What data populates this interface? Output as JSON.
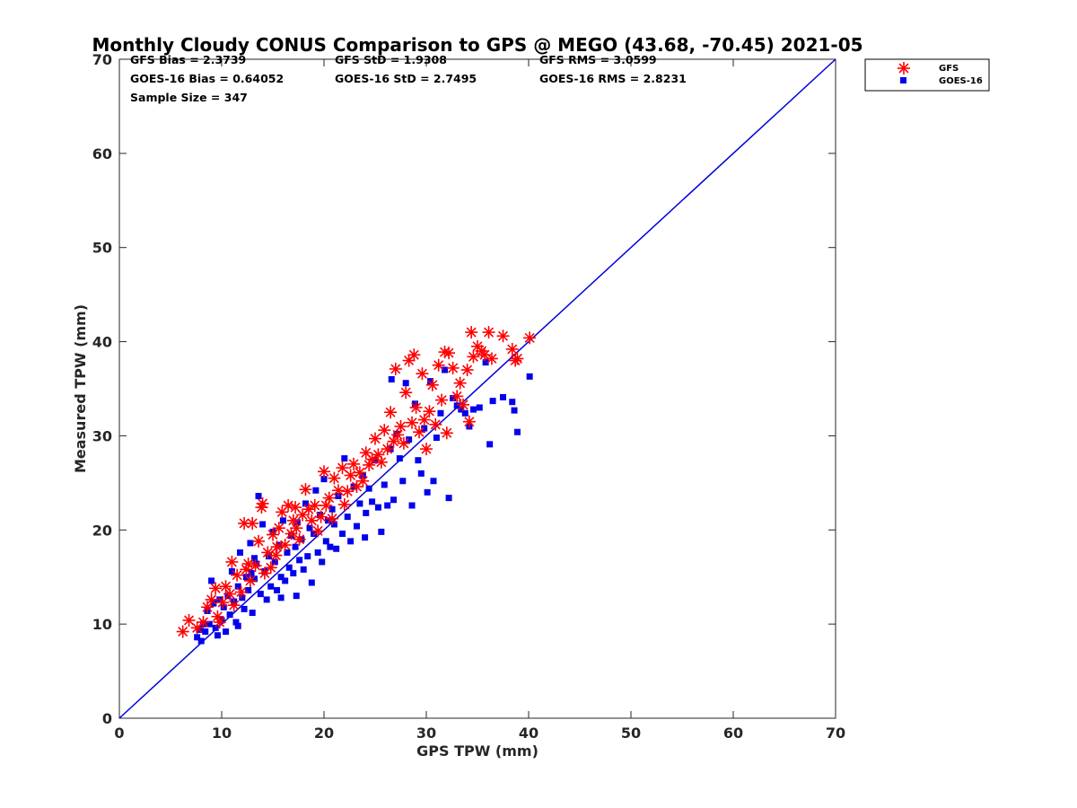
{
  "chart_data": {
    "type": "scatter",
    "title": "Monthly Cloudy CONUS Comparison to GPS @ MEGO (43.68, -70.45) 2021-05",
    "xlabel": "GPS TPW (mm)",
    "ylabel": "Measured TPW (mm)",
    "xlim": [
      0,
      70
    ],
    "ylim": [
      0,
      70
    ],
    "xticks": [
      "0",
      "10",
      "20",
      "30",
      "40",
      "50",
      "60",
      "70"
    ],
    "yticks": [
      "0",
      "10",
      "20",
      "30",
      "40",
      "50",
      "60",
      "70"
    ],
    "grid": false,
    "legend_position": "top-right, outside",
    "stats": {
      "gfs_bias": "GFS Bias = 2.3739",
      "goes_bias": "GOES-16 Bias = 0.64052",
      "sample_size": "Sample Size = 347",
      "gfs_std": "GFS StD = 1.9308",
      "goes_std": "GOES-16 StD = 2.7495",
      "gfs_rms": "GFS RMS = 3.0599",
      "goes_rms": "GOES-16 RMS = 2.8231"
    },
    "reference_line": {
      "x": [
        0,
        70
      ],
      "y": [
        0,
        70
      ],
      "color": "#0000dd"
    },
    "series": [
      {
        "name": "GFS",
        "marker": "asterisk",
        "color": "#ff0000",
        "points": [
          [
            6.2,
            9.2
          ],
          [
            6.8,
            10.4
          ],
          [
            7.6,
            9.6
          ],
          [
            8.2,
            10.2
          ],
          [
            8.6,
            11.8
          ],
          [
            9.0,
            12.6
          ],
          [
            9.4,
            13.8
          ],
          [
            9.6,
            10.8
          ],
          [
            10.1,
            12.3
          ],
          [
            10.4,
            14.0
          ],
          [
            10.8,
            13.2
          ],
          [
            11.0,
            16.6
          ],
          [
            11.2,
            12.0
          ],
          [
            11.5,
            15.2
          ],
          [
            11.9,
            13.4
          ],
          [
            12.2,
            20.7
          ],
          [
            12.4,
            15.8
          ],
          [
            12.8,
            14.6
          ],
          [
            13.0,
            20.7
          ],
          [
            13.3,
            16.2
          ],
          [
            13.6,
            18.8
          ],
          [
            13.9,
            22.4
          ],
          [
            14.0,
            22.8
          ],
          [
            14.2,
            15.4
          ],
          [
            14.5,
            17.6
          ],
          [
            14.8,
            16.0
          ],
          [
            15.0,
            19.5
          ],
          [
            15.3,
            17.3
          ],
          [
            15.6,
            20.2
          ],
          [
            15.9,
            21.9
          ],
          [
            16.2,
            18.4
          ],
          [
            16.5,
            22.6
          ],
          [
            16.8,
            19.6
          ],
          [
            17.0,
            21.0
          ],
          [
            17.3,
            20.2
          ],
          [
            17.6,
            19.0
          ],
          [
            17.9,
            21.6
          ],
          [
            18.2,
            24.3
          ],
          [
            18.5,
            22.2
          ],
          [
            18.8,
            21.0
          ],
          [
            19.1,
            22.6
          ],
          [
            19.4,
            19.9
          ],
          [
            19.7,
            21.4
          ],
          [
            20.0,
            26.2
          ],
          [
            20.2,
            22.6
          ],
          [
            20.5,
            23.4
          ],
          [
            20.8,
            21.2
          ],
          [
            21.0,
            25.5
          ],
          [
            21.4,
            24.2
          ],
          [
            21.8,
            26.6
          ],
          [
            22.0,
            22.7
          ],
          [
            22.3,
            24.1
          ],
          [
            22.6,
            25.8
          ],
          [
            22.9,
            27.0
          ],
          [
            23.2,
            24.6
          ],
          [
            23.5,
            26.1
          ],
          [
            23.8,
            25.2
          ],
          [
            24.1,
            28.2
          ],
          [
            24.4,
            26.9
          ],
          [
            24.7,
            27.5
          ],
          [
            25.0,
            29.7
          ],
          [
            25.3,
            28.0
          ],
          [
            25.6,
            27.2
          ],
          [
            25.9,
            30.6
          ],
          [
            26.2,
            28.6
          ],
          [
            26.5,
            32.5
          ],
          [
            26.8,
            29.4
          ],
          [
            27.0,
            37.1
          ],
          [
            27.2,
            30.1
          ],
          [
            27.5,
            31.0
          ],
          [
            27.8,
            29.2
          ],
          [
            28.0,
            34.6
          ],
          [
            28.3,
            38.0
          ],
          [
            28.6,
            31.4
          ],
          [
            28.8,
            38.6
          ],
          [
            29.0,
            33.0
          ],
          [
            29.3,
            30.4
          ],
          [
            29.6,
            36.6
          ],
          [
            29.8,
            31.7
          ],
          [
            30.0,
            28.6
          ],
          [
            30.3,
            32.6
          ],
          [
            30.6,
            35.4
          ],
          [
            30.9,
            31.2
          ],
          [
            31.2,
            37.5
          ],
          [
            31.5,
            33.8
          ],
          [
            31.8,
            38.9
          ],
          [
            32.0,
            30.3
          ],
          [
            32.2,
            38.8
          ],
          [
            32.6,
            37.2
          ],
          [
            33.0,
            34.2
          ],
          [
            33.3,
            35.6
          ],
          [
            33.6,
            33.3
          ],
          [
            34.0,
            37.0
          ],
          [
            34.2,
            31.5
          ],
          [
            34.4,
            41.0
          ],
          [
            34.6,
            38.4
          ],
          [
            35.0,
            39.5
          ],
          [
            35.4,
            39.0
          ],
          [
            35.7,
            38.6
          ],
          [
            36.1,
            41.0
          ],
          [
            36.4,
            38.2
          ],
          [
            37.5,
            40.6
          ],
          [
            38.4,
            39.2
          ],
          [
            38.7,
            38.0
          ],
          [
            38.9,
            38.2
          ],
          [
            40.1,
            40.4
          ],
          [
            12.6,
            16.4
          ],
          [
            15.4,
            18.2
          ],
          [
            17.2,
            22.4
          ],
          [
            9.8,
            10.2
          ]
        ]
      },
      {
        "name": "GOES-16",
        "marker": "square",
        "color": "#0000ee",
        "points": [
          [
            7.6,
            8.6
          ],
          [
            7.8,
            9.4
          ],
          [
            8.0,
            8.2
          ],
          [
            8.2,
            10.0
          ],
          [
            8.4,
            9.2
          ],
          [
            8.6,
            11.4
          ],
          [
            8.8,
            10.0
          ],
          [
            9.0,
            14.6
          ],
          [
            9.2,
            12.2
          ],
          [
            9.4,
            9.6
          ],
          [
            9.6,
            8.8
          ],
          [
            9.8,
            12.6
          ],
          [
            10.0,
            10.4
          ],
          [
            10.2,
            11.8
          ],
          [
            10.4,
            9.2
          ],
          [
            10.6,
            13.0
          ],
          [
            10.8,
            11.0
          ],
          [
            11.0,
            15.6
          ],
          [
            11.2,
            12.4
          ],
          [
            11.4,
            10.2
          ],
          [
            11.6,
            14.0
          ],
          [
            11.8,
            17.6
          ],
          [
            12.0,
            12.8
          ],
          [
            12.2,
            11.6
          ],
          [
            12.4,
            15.0
          ],
          [
            12.6,
            13.6
          ],
          [
            12.8,
            18.6
          ],
          [
            13.0,
            11.2
          ],
          [
            13.2,
            14.8
          ],
          [
            13.4,
            16.4
          ],
          [
            13.6,
            23.6
          ],
          [
            13.8,
            13.2
          ],
          [
            14.0,
            20.6
          ],
          [
            14.2,
            15.6
          ],
          [
            14.4,
            12.6
          ],
          [
            14.6,
            17.2
          ],
          [
            14.8,
            14.0
          ],
          [
            15.0,
            19.8
          ],
          [
            15.2,
            16.6
          ],
          [
            15.4,
            13.6
          ],
          [
            15.6,
            18.4
          ],
          [
            15.8,
            15.0
          ],
          [
            16.0,
            21.0
          ],
          [
            16.2,
            14.6
          ],
          [
            16.4,
            17.6
          ],
          [
            16.6,
            16.0
          ],
          [
            16.8,
            19.4
          ],
          [
            17.0,
            15.4
          ],
          [
            17.2,
            18.2
          ],
          [
            17.4,
            20.8
          ],
          [
            17.6,
            16.8
          ],
          [
            17.8,
            19.0
          ],
          [
            18.0,
            15.8
          ],
          [
            18.2,
            22.8
          ],
          [
            18.4,
            17.2
          ],
          [
            18.6,
            20.2
          ],
          [
            18.8,
            14.4
          ],
          [
            19.0,
            19.6
          ],
          [
            19.2,
            24.2
          ],
          [
            19.4,
            17.6
          ],
          [
            19.6,
            21.6
          ],
          [
            19.8,
            16.6
          ],
          [
            20.0,
            25.4
          ],
          [
            20.2,
            18.8
          ],
          [
            20.4,
            21.0
          ],
          [
            20.6,
            18.2
          ],
          [
            20.8,
            22.2
          ],
          [
            21.0,
            20.6
          ],
          [
            21.4,
            23.6
          ],
          [
            21.8,
            19.6
          ],
          [
            22.0,
            27.6
          ],
          [
            22.3,
            21.4
          ],
          [
            22.6,
            18.8
          ],
          [
            22.9,
            24.6
          ],
          [
            23.2,
            20.4
          ],
          [
            23.5,
            22.8
          ],
          [
            23.8,
            25.8
          ],
          [
            24.1,
            21.8
          ],
          [
            24.4,
            24.4
          ],
          [
            24.7,
            23.0
          ],
          [
            25.0,
            27.4
          ],
          [
            25.3,
            22.4
          ],
          [
            25.6,
            19.8
          ],
          [
            25.9,
            24.8
          ],
          [
            26.2,
            22.6
          ],
          [
            26.5,
            28.6
          ],
          [
            26.8,
            23.2
          ],
          [
            27.1,
            30.2
          ],
          [
            27.4,
            27.6
          ],
          [
            27.7,
            25.2
          ],
          [
            28.0,
            35.6
          ],
          [
            28.3,
            29.6
          ],
          [
            28.6,
            22.6
          ],
          [
            28.9,
            33.4
          ],
          [
            29.2,
            27.4
          ],
          [
            29.5,
            26.0
          ],
          [
            29.8,
            30.8
          ],
          [
            30.1,
            24.0
          ],
          [
            30.4,
            35.8
          ],
          [
            30.7,
            25.2
          ],
          [
            31.0,
            29.8
          ],
          [
            31.4,
            32.4
          ],
          [
            31.8,
            37.0
          ],
          [
            32.2,
            23.4
          ],
          [
            32.6,
            34.0
          ],
          [
            33.0,
            33.2
          ],
          [
            33.4,
            32.8
          ],
          [
            33.8,
            32.4
          ],
          [
            34.2,
            31.0
          ],
          [
            34.6,
            32.8
          ],
          [
            35.2,
            33.0
          ],
          [
            35.8,
            37.8
          ],
          [
            36.2,
            29.1
          ],
          [
            36.5,
            33.7
          ],
          [
            37.5,
            34.1
          ],
          [
            38.4,
            33.6
          ],
          [
            38.6,
            32.7
          ],
          [
            38.9,
            30.4
          ],
          [
            40.1,
            36.3
          ],
          [
            26.6,
            36.0
          ],
          [
            13.2,
            17.0
          ],
          [
            15.8,
            12.8
          ],
          [
            11.6,
            9.8
          ],
          [
            12.9,
            15.4
          ],
          [
            17.3,
            13.0
          ],
          [
            21.2,
            18.0
          ],
          [
            24.0,
            19.2
          ]
        ]
      }
    ]
  }
}
